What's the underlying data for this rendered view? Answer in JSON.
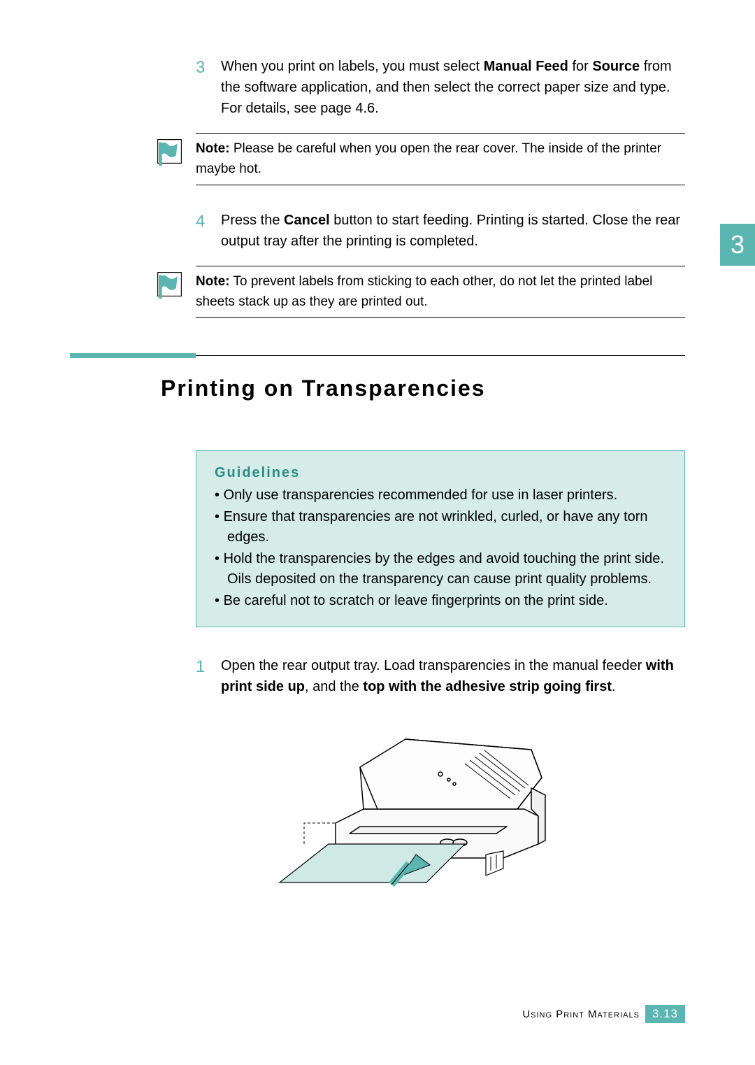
{
  "chapter_tab": "3",
  "steps_a": [
    {
      "num": "3",
      "parts": [
        {
          "t": "When you print on labels, you must select ",
          "b": false
        },
        {
          "t": "Manual Feed",
          "b": true
        },
        {
          "t": " for ",
          "b": false
        },
        {
          "t": "Source",
          "b": true
        },
        {
          "t": " from the software application, and then select the correct paper size and type. For details, see page 4.6.",
          "b": false
        }
      ]
    }
  ],
  "note1": {
    "label": "Note:",
    "text": " Please be careful when you open the rear cover. The inside of the printer maybe hot."
  },
  "steps_b": [
    {
      "num": "4",
      "parts": [
        {
          "t": "Press the ",
          "b": false
        },
        {
          "t": "Cancel",
          "b": true
        },
        {
          "t": " button to start feeding. Printing is started. Close the rear output tray after the printing is completed.",
          "b": false
        }
      ]
    }
  ],
  "note2": {
    "label": "Note:",
    "text": " To prevent labels from sticking to each other, do not let the printed label sheets stack up as they are printed out."
  },
  "section_title": "Printing on Transparencies",
  "guidelines": {
    "title": "Guidelines",
    "items": [
      "Only use transparencies recommended for use in laser printers.",
      "Ensure that transparencies are not wrinkled, curled, or have any torn edges.",
      "Hold the transparencies by the edges and avoid touching the print side. Oils deposited on the transparency can cause print quality problems.",
      "Be careful not to scratch or leave fingerprints on the print side."
    ]
  },
  "steps_c": [
    {
      "num": "1",
      "parts": [
        {
          "t": "Open the rear output tray. Load transparencies in the manual feeder ",
          "b": false
        },
        {
          "t": "with print side up",
          "b": true
        },
        {
          "t": ", and the ",
          "b": false
        },
        {
          "t": "top with the adhesive strip going first",
          "b": true
        },
        {
          "t": ".",
          "b": false
        }
      ]
    }
  ],
  "footer": {
    "label": "Using Print Materials",
    "page": "3.13"
  },
  "colors": {
    "accent": "#5bb5b0",
    "guidelines_bg": "#d6ece8",
    "guidelines_title": "#2a8a84",
    "paper_fill": "#cfe9e5"
  }
}
